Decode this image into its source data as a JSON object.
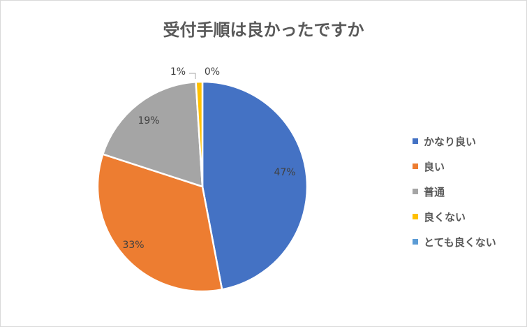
{
  "chart_data": {
    "type": "pie",
    "title": "受付手順は良かったですか",
    "categories": [
      "かなり良い",
      "良い",
      "普通",
      "良くない",
      "とても良くない"
    ],
    "values": [
      47,
      33,
      19,
      1,
      0
    ],
    "labels": [
      "47%",
      "33%",
      "19%",
      "1%",
      "0%"
    ],
    "colors": [
      "#4472C4",
      "#ED7D31",
      "#A5A5A5",
      "#FFC000",
      "#5B9BD5"
    ],
    "legend_position": "right"
  }
}
